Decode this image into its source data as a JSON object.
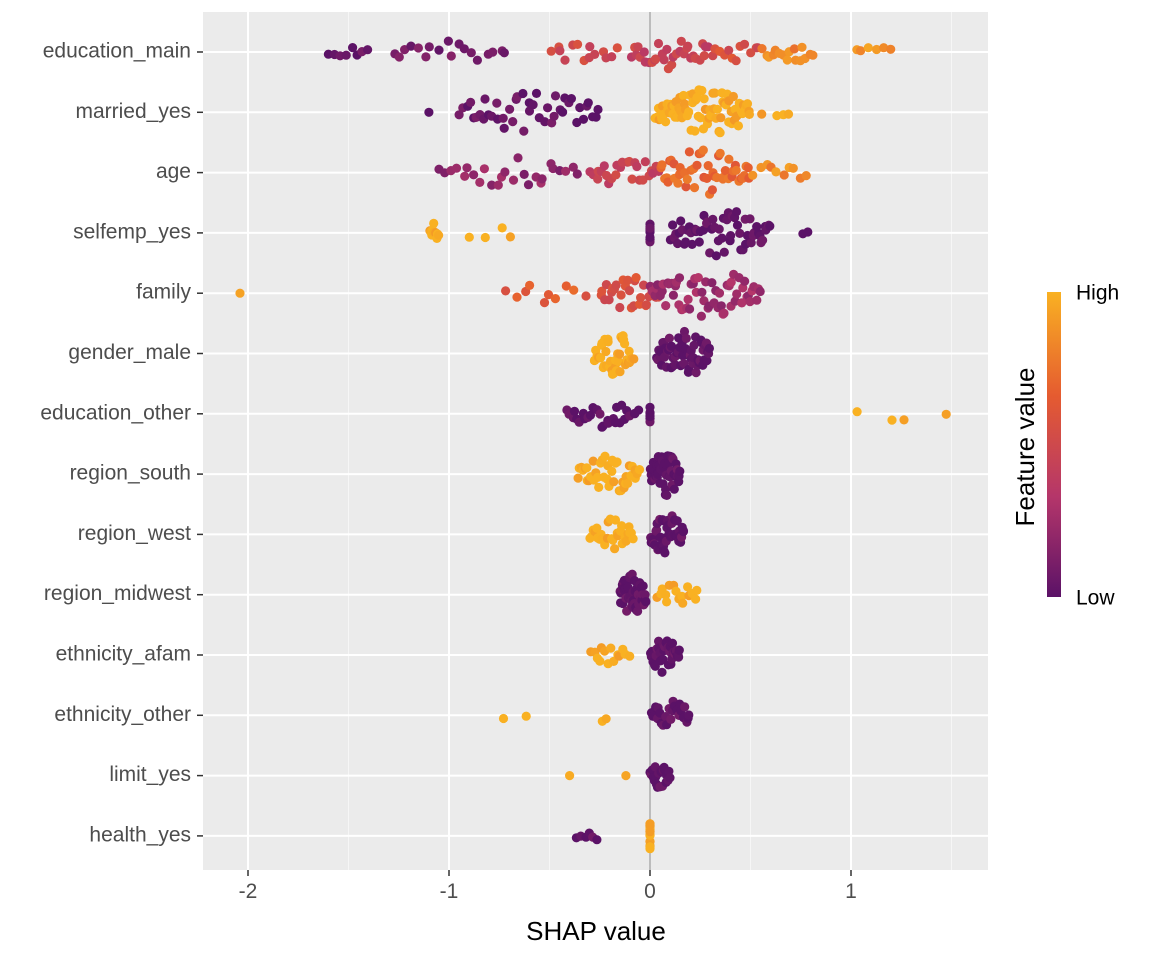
{
  "chart_data": {
    "type": "scatter",
    "subtype": "beeswarm",
    "xlabel": "SHAP value",
    "ylabel": "",
    "xlim": [
      -2.2,
      1.7
    ],
    "x_ticks": [
      -2,
      -1,
      0,
      1
    ],
    "x_tick_labels": [
      "-2",
      "-1",
      "0",
      "1"
    ],
    "zero_line": true,
    "grid": true,
    "legend": {
      "title": "Feature value",
      "high_label": "High",
      "low_label": "Low",
      "placement": "right",
      "colors": [
        "#5b1267",
        "#b5366a",
        "#e55b30",
        "#f9b122"
      ]
    },
    "colors": {
      "low": "#5b1267",
      "mid_low": "#b5366a",
      "mid_high": "#e55b30",
      "high": "#f9b122",
      "panel": "#ebebeb",
      "grid": "#ffffff",
      "zero_line": "#a6a6a6"
    },
    "features": [
      {
        "name": "education_main",
        "groups": [
          {
            "x": [
              -1.6,
              -1.4
            ],
            "c": 0.03,
            "n": 8
          },
          {
            "x": [
              -1.3,
              -0.7
            ],
            "c": 0.08,
            "n": 18
          },
          {
            "x": [
              -0.5,
              -0.15
            ],
            "c": 0.5,
            "n": 14
          },
          {
            "x": [
              -0.1,
              0.3
            ],
            "c": 0.45,
            "n": 32
          },
          {
            "x": [
              0.3,
              0.55
            ],
            "c": 0.55,
            "n": 12
          },
          {
            "x": [
              0.55,
              0.82
            ],
            "c": 0.82,
            "n": 16
          },
          {
            "x": [
              1.0,
              1.2
            ],
            "c": 0.88,
            "n": 6
          }
        ]
      },
      {
        "name": "married_yes",
        "groups": [
          {
            "x": [
              -1.1,
              -1.1
            ],
            "c": 0.02,
            "n": 1
          },
          {
            "x": [
              -0.95,
              -0.25
            ],
            "c": 0.03,
            "n": 44
          },
          {
            "x": [
              0.02,
              0.5
            ],
            "c": 0.98,
            "n": 80
          },
          {
            "x": [
              0.55,
              0.72
            ],
            "c": 0.98,
            "n": 4
          }
        ]
      },
      {
        "name": "age",
        "groups": [
          {
            "x": [
              -1.05,
              -0.35
            ],
            "c": 0.2,
            "n": 26
          },
          {
            "x": [
              -0.3,
              0.05
            ],
            "c": 0.45,
            "n": 26
          },
          {
            "x": [
              0.05,
              0.5
            ],
            "c": 0.7,
            "n": 50
          },
          {
            "x": [
              0.5,
              0.8
            ],
            "c": 0.85,
            "n": 10
          }
        ]
      },
      {
        "name": "selfemp_yes",
        "groups": [
          {
            "x": [
              -1.1,
              -1.05
            ],
            "c": 1.0,
            "n": 10
          },
          {
            "x": [
              -0.95,
              -0.65
            ],
            "c": 1.0,
            "n": 4
          },
          {
            "x": [
              0.0,
              0.0
            ],
            "c": 0.0,
            "n": 10
          },
          {
            "x": [
              0.1,
              0.6
            ],
            "c": 0.0,
            "n": 60
          },
          {
            "x": [
              0.75,
              0.8
            ],
            "c": 0.0,
            "n": 2
          }
        ]
      },
      {
        "name": "family",
        "groups": [
          {
            "x": [
              -2.04,
              -2.04
            ],
            "c": 0.95,
            "n": 1
          },
          {
            "x": [
              -0.75,
              -0.3
            ],
            "c": 0.65,
            "n": 10
          },
          {
            "x": [
              -0.25,
              0.05
            ],
            "c": 0.55,
            "n": 30
          },
          {
            "x": [
              0.0,
              0.55
            ],
            "c": 0.25,
            "n": 60
          }
        ]
      },
      {
        "name": "gender_male",
        "groups": [
          {
            "x": [
              -0.28,
              -0.08
            ],
            "c": 1.0,
            "n": 45
          },
          {
            "x": [
              0.03,
              0.3
            ],
            "c": 0.0,
            "n": 60
          }
        ]
      },
      {
        "name": "education_other",
        "groups": [
          {
            "x": [
              -0.42,
              -0.05
            ],
            "c": 0.0,
            "n": 28
          },
          {
            "x": [
              0.0,
              0.0
            ],
            "c": 0.0,
            "n": 8
          },
          {
            "x": [
              1.02,
              1.5
            ],
            "c": 1.0,
            "n": 4
          }
        ]
      },
      {
        "name": "region_south",
        "groups": [
          {
            "x": [
              -0.36,
              -0.05
            ],
            "c": 1.0,
            "n": 40
          },
          {
            "x": [
              0.0,
              0.15
            ],
            "c": 0.0,
            "n": 45
          }
        ]
      },
      {
        "name": "region_west",
        "groups": [
          {
            "x": [
              -0.3,
              -0.08
            ],
            "c": 1.0,
            "n": 30
          },
          {
            "x": [
              0.0,
              0.17
            ],
            "c": 0.0,
            "n": 45
          }
        ]
      },
      {
        "name": "region_midwest",
        "groups": [
          {
            "x": [
              -0.15,
              -0.02
            ],
            "c": 0.0,
            "n": 50
          },
          {
            "x": [
              0.03,
              0.24
            ],
            "c": 1.0,
            "n": 16
          }
        ]
      },
      {
        "name": "ethnicity_afam",
        "groups": [
          {
            "x": [
              -0.3,
              -0.1
            ],
            "c": 1.0,
            "n": 14
          },
          {
            "x": [
              0.0,
              0.15
            ],
            "c": 0.0,
            "n": 35
          }
        ]
      },
      {
        "name": "ethnicity_other",
        "groups": [
          {
            "x": [
              -0.76,
              -0.6
            ],
            "c": 1.0,
            "n": 2
          },
          {
            "x": [
              -0.26,
              -0.2
            ],
            "c": 1.0,
            "n": 2
          },
          {
            "x": [
              0.0,
              0.2
            ],
            "c": 0.0,
            "n": 25
          }
        ]
      },
      {
        "name": "limit_yes",
        "groups": [
          {
            "x": [
              -0.4,
              -0.4
            ],
            "c": 1.0,
            "n": 1
          },
          {
            "x": [
              -0.12,
              -0.12
            ],
            "c": 1.0,
            "n": 1
          },
          {
            "x": [
              0.0,
              0.1
            ],
            "c": 0.0,
            "n": 22
          }
        ]
      },
      {
        "name": "health_yes",
        "groups": [
          {
            "x": [
              -0.37,
              -0.25
            ],
            "c": 0.0,
            "n": 6
          },
          {
            "x": [
              0.0,
              0.0
            ],
            "c": 1.0,
            "n": 20
          }
        ]
      }
    ]
  }
}
